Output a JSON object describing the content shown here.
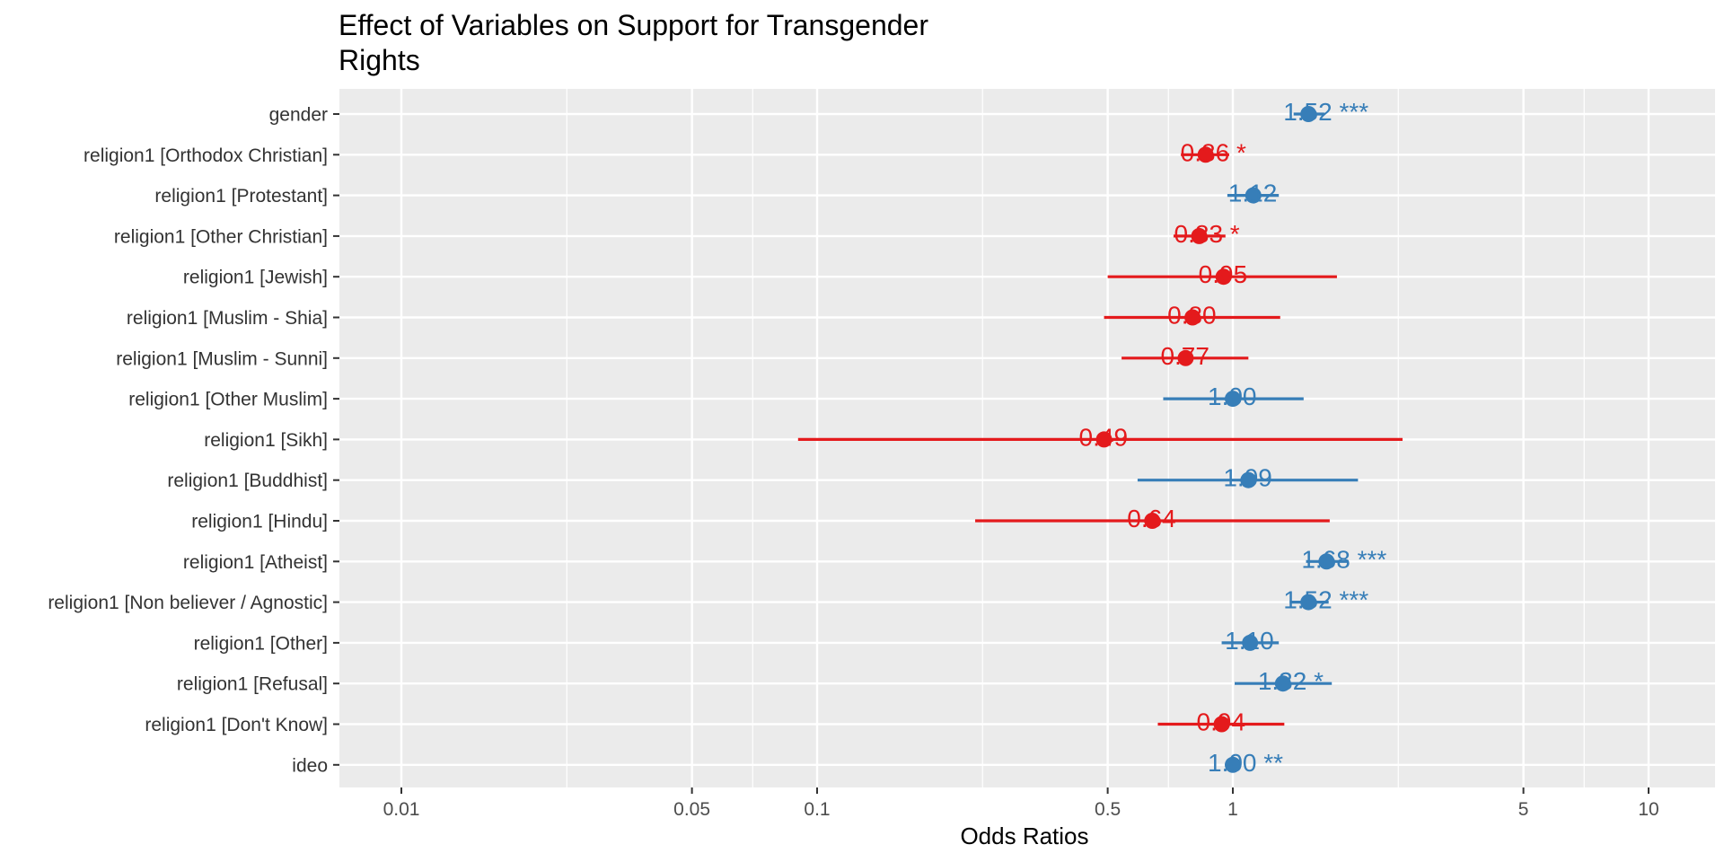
{
  "chart_data": {
    "type": "forest",
    "title": "Effect of Variables on Support for Transgender Rights",
    "title_lines": [
      "Effect of Variables on Support for Transgender",
      "Rights"
    ],
    "xlabel": "Odds Ratios",
    "xscale": "log10",
    "xlim": [
      0.007,
      14
    ],
    "x_ticks": [
      {
        "value": 0.01,
        "label": "0.01"
      },
      {
        "value": 0.05,
        "label": "0.05"
      },
      {
        "value": 0.1,
        "label": "0.1"
      },
      {
        "value": 0.5,
        "label": "0.5"
      },
      {
        "value": 1,
        "label": "1"
      },
      {
        "value": 5,
        "label": "5"
      },
      {
        "value": 10,
        "label": "10"
      }
    ],
    "x_minor_gridlines": [
      0.025,
      0.07,
      0.25,
      0.7,
      2.5,
      7
    ],
    "grid": true,
    "colors": {
      "positive": "#377eb8",
      "negative": "#e41a1c",
      "panel": "#ebebeb",
      "gridline": "#ffffff"
    },
    "terms": [
      {
        "label": "gender",
        "estimate": 1.52,
        "ci_low": 1.4,
        "ci_high": 1.66,
        "display": "1.52 ***",
        "direction": "positive"
      },
      {
        "label": "religion1 [Orthodox Christian]",
        "estimate": 0.86,
        "ci_low": 0.75,
        "ci_high": 0.98,
        "display": "0.86 *",
        "direction": "negative"
      },
      {
        "label": "religion1 [Protestant]",
        "estimate": 1.12,
        "ci_low": 0.97,
        "ci_high": 1.29,
        "display": "1.12",
        "direction": "positive"
      },
      {
        "label": "religion1 [Other Christian]",
        "estimate": 0.83,
        "ci_low": 0.72,
        "ci_high": 0.96,
        "display": "0.83 *",
        "direction": "negative"
      },
      {
        "label": "religion1 [Jewish]",
        "estimate": 0.95,
        "ci_low": 0.5,
        "ci_high": 1.78,
        "display": "0.95",
        "direction": "negative"
      },
      {
        "label": "religion1 [Muslim - Shia]",
        "estimate": 0.8,
        "ci_low": 0.49,
        "ci_high": 1.3,
        "display": "0.80",
        "direction": "negative"
      },
      {
        "label": "religion1 [Muslim - Sunni]",
        "estimate": 0.77,
        "ci_low": 0.54,
        "ci_high": 1.09,
        "display": "0.77",
        "direction": "negative"
      },
      {
        "label": "religion1 [Other Muslim]",
        "estimate": 1.0,
        "ci_low": 0.68,
        "ci_high": 1.48,
        "display": "1.00",
        "direction": "positive"
      },
      {
        "label": "religion1 [Sikh]",
        "estimate": 0.49,
        "ci_low": 0.09,
        "ci_high": 2.56,
        "display": "0.49",
        "direction": "negative"
      },
      {
        "label": "religion1 [Buddhist]",
        "estimate": 1.09,
        "ci_low": 0.59,
        "ci_high": 2.0,
        "display": "1.09",
        "direction": "positive"
      },
      {
        "label": "religion1 [Hindu]",
        "estimate": 0.64,
        "ci_low": 0.24,
        "ci_high": 1.71,
        "display": "0.64",
        "direction": "negative"
      },
      {
        "label": "religion1 [Atheist]",
        "estimate": 1.68,
        "ci_low": 1.5,
        "ci_high": 1.9,
        "display": "1.68 ***",
        "direction": "positive"
      },
      {
        "label": "religion1 [Non believer / Agnostic]",
        "estimate": 1.52,
        "ci_low": 1.37,
        "ci_high": 1.7,
        "display": "1.52 ***",
        "direction": "positive"
      },
      {
        "label": "religion1 [Other]",
        "estimate": 1.1,
        "ci_low": 0.94,
        "ci_high": 1.29,
        "display": "1.10",
        "direction": "positive"
      },
      {
        "label": "religion1 [Refusal]",
        "estimate": 1.32,
        "ci_low": 1.01,
        "ci_high": 1.73,
        "display": "1.32 *",
        "direction": "positive"
      },
      {
        "label": "religion1 [Don't Know]",
        "estimate": 0.94,
        "ci_low": 0.66,
        "ci_high": 1.33,
        "display": "0.94",
        "direction": "negative"
      },
      {
        "label": "ideo",
        "estimate": 1.0,
        "ci_low": 1.0,
        "ci_high": 1.0,
        "display": "1.00 **",
        "direction": "positive"
      }
    ]
  }
}
